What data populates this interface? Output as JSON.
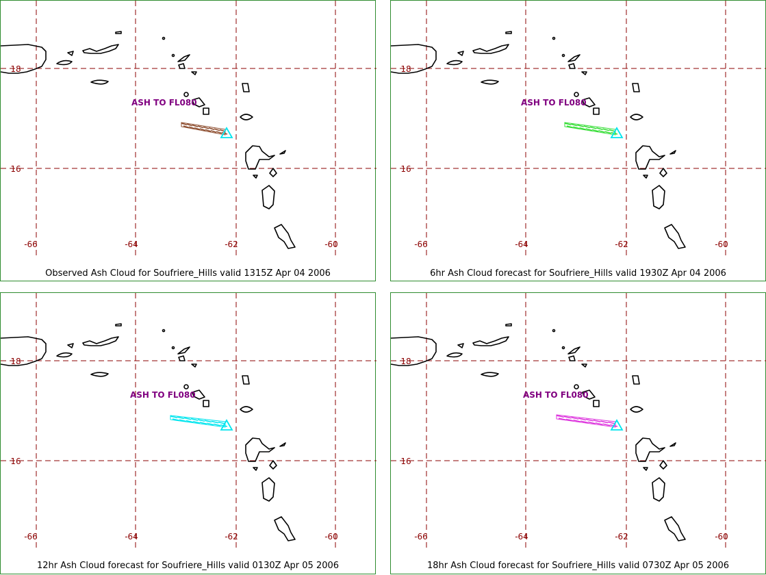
{
  "lat_ticks": [
    "18",
    "16"
  ],
  "lon_ticks": [
    "-66",
    "-64",
    "-62",
    "-60"
  ],
  "colors": {
    "grid": "#8b0000",
    "label": "#8b0000",
    "annotation": "#800080",
    "volcano": "#00e5ee",
    "frame": "#2e8b2e"
  },
  "panels": [
    {
      "caption": "Observed Ash Cloud for Soufriere_Hills valid 1315Z Apr 04 2006",
      "annotation": "ASH TO FL080",
      "cloud_color": "#8b4a2b"
    },
    {
      "caption": "6hr Ash Cloud forecast for Soufriere_Hills valid 1930Z Apr 04 2006",
      "annotation": "ASH TO FL080",
      "cloud_color": "#33dd33"
    },
    {
      "caption": "12hr Ash Cloud forecast for Soufriere_Hills valid 0130Z Apr 05 2006",
      "annotation": "ASH TO FL080",
      "cloud_color": "#00e5ee"
    },
    {
      "caption": "18hr Ash Cloud forecast for Soufriere_Hills valid 0730Z Apr 05 2006",
      "annotation": "ASH TO FL080",
      "cloud_color": "#dd33dd"
    }
  ]
}
